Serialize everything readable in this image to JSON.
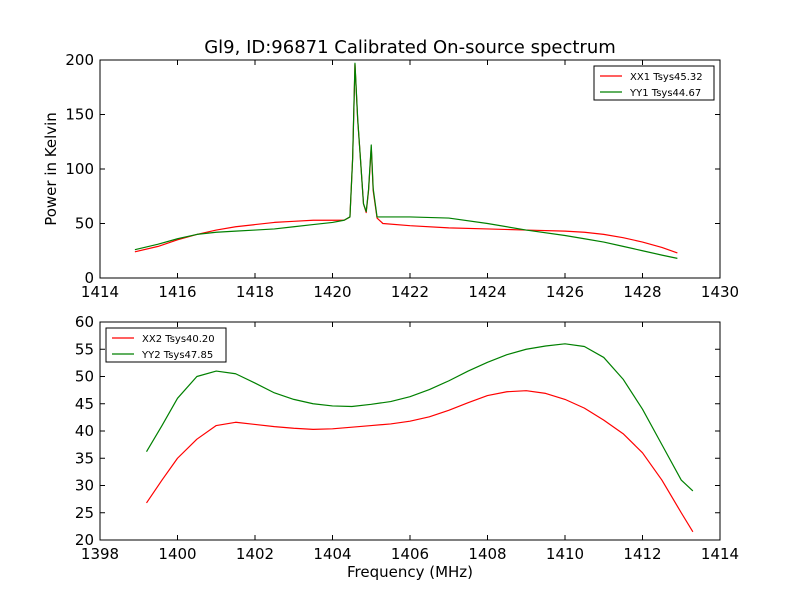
{
  "chart_data": [
    {
      "type": "line",
      "title": "Gl9, ID:96871 Calibrated On-source spectrum",
      "xlabel": "",
      "ylabel": "Power in Kelvin",
      "xlim": [
        1414,
        1430
      ],
      "ylim": [
        0,
        200
      ],
      "xticks": [
        "1414",
        "1416",
        "1418",
        "1420",
        "1422",
        "1424",
        "1426",
        "1428",
        "1430"
      ],
      "yticks": [
        "0",
        "50",
        "100",
        "150",
        "200"
      ],
      "grid": false,
      "legend_position": "top-right",
      "series": [
        {
          "name": "XX1 Tsys45.32",
          "color": "#ff0000",
          "x": [
            1414.9,
            1415.5,
            1416.0,
            1416.5,
            1417.0,
            1417.5,
            1418.0,
            1418.5,
            1419.0,
            1419.5,
            1420.0,
            1420.3,
            1420.45,
            1420.52,
            1420.58,
            1420.65,
            1420.72,
            1420.8,
            1420.87,
            1420.93,
            1421.0,
            1421.05,
            1421.15,
            1421.3,
            1422.0,
            1423.0,
            1424.0,
            1425.0,
            1426.0,
            1426.5,
            1427.0,
            1427.5,
            1428.0,
            1428.5,
            1428.9
          ],
          "values": [
            24,
            29,
            35,
            40,
            44,
            47,
            49,
            51,
            52,
            53,
            53,
            53,
            56,
            110,
            196,
            145,
            110,
            68,
            60,
            80,
            120,
            80,
            55,
            50,
            48,
            46,
            45,
            44,
            43,
            42,
            40,
            37,
            33,
            28,
            23
          ]
        },
        {
          "name": "YY1 Tsys44.67",
          "color": "#008000",
          "x": [
            1414.9,
            1415.5,
            1416.0,
            1416.5,
            1417.0,
            1417.5,
            1418.0,
            1418.5,
            1419.0,
            1419.5,
            1420.0,
            1420.3,
            1420.45,
            1420.52,
            1420.58,
            1420.65,
            1420.72,
            1420.8,
            1420.87,
            1420.93,
            1421.0,
            1421.05,
            1421.15,
            1421.3,
            1422.0,
            1423.0,
            1424.0,
            1425.0,
            1426.0,
            1426.5,
            1427.0,
            1427.5,
            1428.0,
            1428.5,
            1428.9
          ],
          "values": [
            26,
            31,
            36,
            40,
            42,
            43,
            44,
            45,
            47,
            49,
            51,
            53,
            56,
            110,
            197,
            146,
            110,
            68,
            61,
            81,
            122,
            82,
            56,
            56,
            56,
            55,
            50,
            44,
            39,
            36,
            33,
            29,
            25,
            21,
            18
          ]
        }
      ]
    },
    {
      "type": "line",
      "title": "",
      "xlabel": "Frequency (MHz)",
      "ylabel": "",
      "xlim": [
        1398,
        1414
      ],
      "ylim": [
        20,
        60
      ],
      "xticks": [
        "1398",
        "1400",
        "1402",
        "1404",
        "1406",
        "1408",
        "1410",
        "1412",
        "1414"
      ],
      "yticks": [
        "20",
        "25",
        "30",
        "35",
        "40",
        "45",
        "50",
        "55",
        "60"
      ],
      "grid": false,
      "legend_position": "top-left",
      "series": [
        {
          "name": "XX2 Tsys40.20",
          "color": "#ff0000",
          "x": [
            1399.2,
            1399.6,
            1400.0,
            1400.5,
            1401.0,
            1401.5,
            1402.0,
            1402.5,
            1403.0,
            1403.5,
            1404.0,
            1404.5,
            1405.0,
            1405.5,
            1406.0,
            1406.5,
            1407.0,
            1407.5,
            1408.0,
            1408.5,
            1409.0,
            1409.5,
            1410.0,
            1410.5,
            1411.0,
            1411.5,
            1412.0,
            1412.5,
            1413.0,
            1413.3
          ],
          "values": [
            26.8,
            31,
            35,
            38.5,
            41,
            41.6,
            41.2,
            40.8,
            40.5,
            40.3,
            40.4,
            40.7,
            41.0,
            41.3,
            41.8,
            42.6,
            43.8,
            45.2,
            46.5,
            47.2,
            47.4,
            46.9,
            45.8,
            44.2,
            42.0,
            39.5,
            36.0,
            31.0,
            25.0,
            21.5
          ]
        },
        {
          "name": "YY2 Tsys47.85",
          "color": "#008000",
          "x": [
            1399.2,
            1399.6,
            1400.0,
            1400.5,
            1401.0,
            1401.5,
            1402.0,
            1402.5,
            1403.0,
            1403.5,
            1404.0,
            1404.5,
            1405.0,
            1405.5,
            1406.0,
            1406.5,
            1407.0,
            1407.5,
            1408.0,
            1408.5,
            1409.0,
            1409.5,
            1410.0,
            1410.5,
            1411.0,
            1411.5,
            1412.0,
            1412.5,
            1413.0,
            1413.3
          ],
          "values": [
            36.2,
            41,
            46,
            50,
            51,
            50.5,
            48.8,
            47.0,
            45.8,
            45.0,
            44.6,
            44.5,
            44.9,
            45.4,
            46.3,
            47.6,
            49.2,
            51.0,
            52.6,
            54.0,
            55.0,
            55.6,
            56.0,
            55.5,
            53.5,
            49.5,
            44.0,
            37.5,
            31.0,
            29.0
          ]
        }
      ]
    }
  ]
}
